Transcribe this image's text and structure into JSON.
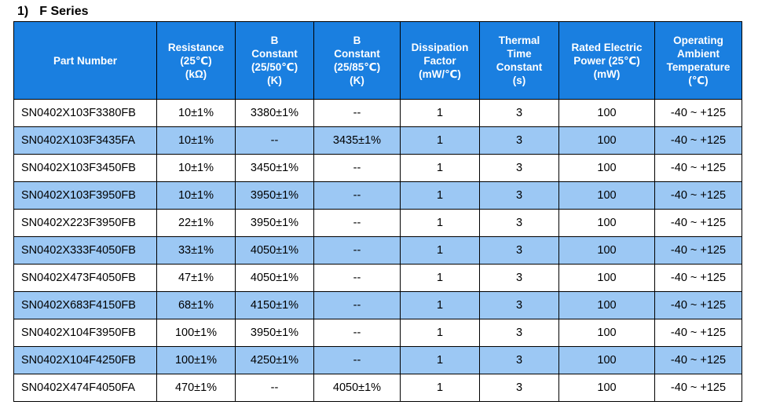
{
  "section": {
    "number": "1)",
    "title": "F Series"
  },
  "table": {
    "headers": [
      {
        "lines": [
          "Part Number"
        ]
      },
      {
        "lines": [
          "Resistance",
          "(25℃)",
          "(kΩ)"
        ]
      },
      {
        "lines": [
          "B",
          "Constant",
          "(25/50℃)",
          "(K)"
        ]
      },
      {
        "lines": [
          "B",
          "Constant",
          "(25/85℃)",
          "(K)"
        ]
      },
      {
        "lines": [
          "Dissipation",
          "Factor",
          "(mW/℃)"
        ]
      },
      {
        "lines": [
          "Thermal",
          "Time",
          "Constant",
          "(s)"
        ]
      },
      {
        "lines": [
          "Rated Electric",
          "Power (25℃)",
          "(mW)"
        ]
      },
      {
        "lines": [
          "Operating",
          "Ambient",
          "Temperature",
          "(℃)"
        ]
      }
    ],
    "rows": [
      [
        "SN0402X103F3380FB",
        "10±1%",
        "3380±1%",
        "--",
        "1",
        "3",
        "100",
        "-40 ~ +125"
      ],
      [
        "SN0402X103F3435FA",
        "10±1%",
        "--",
        "3435±1%",
        "1",
        "3",
        "100",
        "-40 ~ +125"
      ],
      [
        "SN0402X103F3450FB",
        "10±1%",
        "3450±1%",
        "--",
        "1",
        "3",
        "100",
        "-40 ~ +125"
      ],
      [
        "SN0402X103F3950FB",
        "10±1%",
        "3950±1%",
        "--",
        "1",
        "3",
        "100",
        "-40 ~ +125"
      ],
      [
        "SN0402X223F3950FB",
        "22±1%",
        "3950±1%",
        "--",
        "1",
        "3",
        "100",
        "-40 ~ +125"
      ],
      [
        "SN0402X333F4050FB",
        "33±1%",
        "4050±1%",
        "--",
        "1",
        "3",
        "100",
        "-40 ~ +125"
      ],
      [
        "SN0402X473F4050FB",
        "47±1%",
        "4050±1%",
        "--",
        "1",
        "3",
        "100",
        "-40 ~ +125"
      ],
      [
        "SN0402X683F4150FB",
        "68±1%",
        "4150±1%",
        "--",
        "1",
        "3",
        "100",
        "-40 ~ +125"
      ],
      [
        "SN0402X104F3950FB",
        "100±1%",
        "3950±1%",
        "--",
        "1",
        "3",
        "100",
        "-40 ~ +125"
      ],
      [
        "SN0402X104F4250FB",
        "100±1%",
        "4250±1%",
        "--",
        "1",
        "3",
        "100",
        "-40 ~ +125"
      ],
      [
        "SN0402X474F4050FA",
        "470±1%",
        "--",
        "4050±1%",
        "1",
        "3",
        "100",
        "-40 ~ +125"
      ]
    ]
  },
  "colors": {
    "header_bg": "#1a7fe0",
    "header_text": "#ffffff",
    "alt_row_bg": "#9cc8f4",
    "row_bg": "#ffffff"
  }
}
